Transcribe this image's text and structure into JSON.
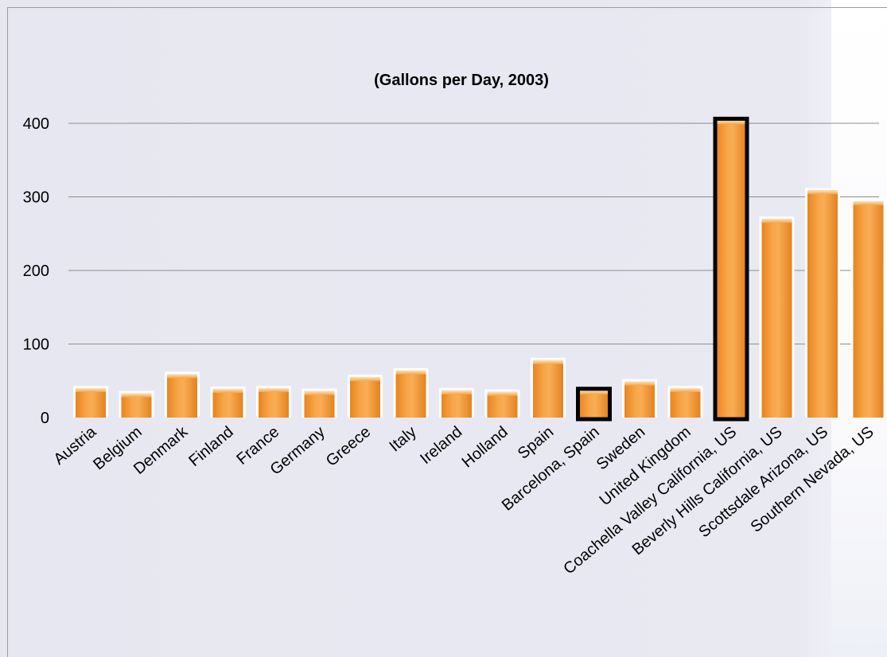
{
  "chart_data": {
    "type": "bar",
    "title": "(Gallons per Day, 2003)",
    "xlabel": "",
    "ylabel": "",
    "ylim": [
      0,
      400
    ],
    "yticks": [
      0,
      100,
      200,
      300,
      400
    ],
    "grid": true,
    "categories": [
      "Austria",
      "Belgium",
      "Denmark",
      "Finland",
      "France",
      "Germany",
      "Greece",
      "Italy",
      "Ireland",
      "Holland",
      "Spain",
      "Barcelona, Spain",
      "Sweden",
      "United Kingdom",
      "Coachella Valley California, US",
      "Beverly Hills California, US",
      "Scottsdale Arizona, US",
      "Southern Nevada, US"
    ],
    "values": [
      40,
      33,
      59,
      39,
      40,
      36,
      55,
      64,
      37,
      35,
      78,
      37,
      49,
      40,
      404,
      270,
      309,
      294
    ],
    "highlighted": [
      "Barcelona, Spain",
      "Coachella Valley California, US"
    ],
    "colors": {
      "bar": "#f39a38",
      "bar_light": "#fbc98a",
      "bar_dark": "#e07f1c",
      "highlight_border": "#000000",
      "gridline": "#8c8c8c"
    }
  }
}
